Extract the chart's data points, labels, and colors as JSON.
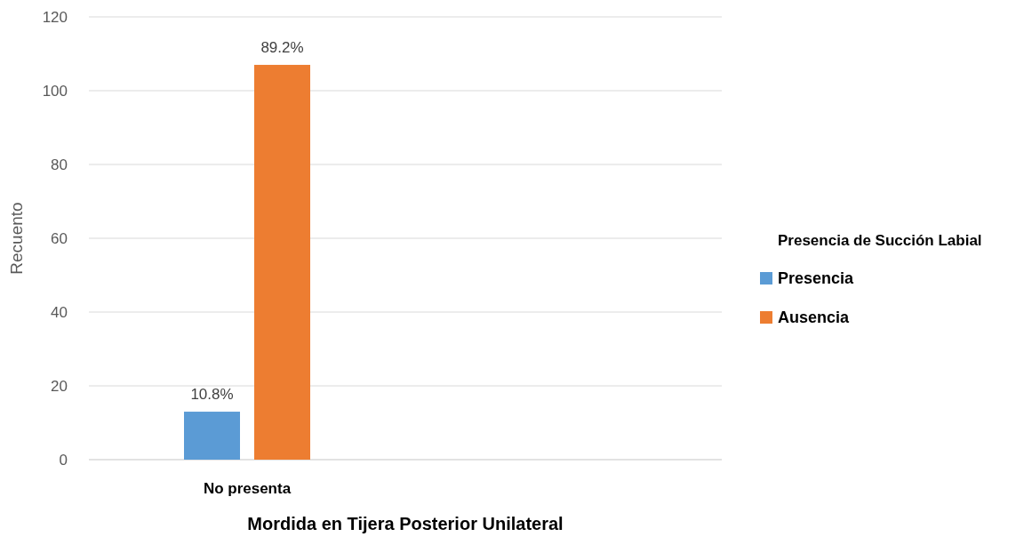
{
  "chart_data": {
    "type": "bar",
    "xlabel": "Mordida en Tijera Posterior Unilateral",
    "ylabel": "Recuento",
    "legend_title": "Presencia de Succión Labial",
    "categories": [
      "No presenta",
      null
    ],
    "series": [
      {
        "name": "Presencia",
        "color": "#5b9bd5",
        "values": [
          13,
          null
        ]
      },
      {
        "name": "Ausencia",
        "color": "#ed7d31",
        "values": [
          107,
          null
        ]
      }
    ],
    "annotations": [
      "10.8%",
      "89.2%"
    ],
    "ylim": [
      0,
      120
    ],
    "yticks": [
      0,
      20,
      40,
      60,
      80,
      100,
      120
    ],
    "grid": "y",
    "legend": "right"
  }
}
